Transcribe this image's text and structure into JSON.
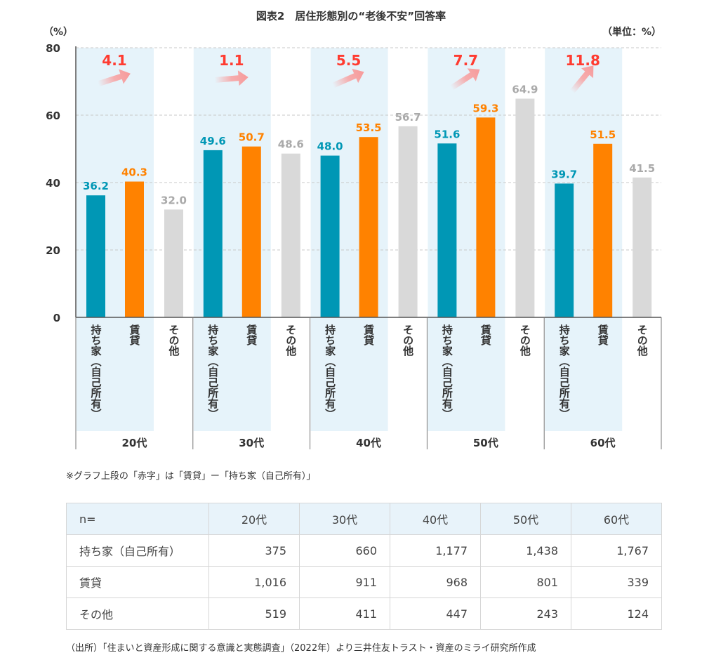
{
  "chart_data": {
    "type": "bar",
    "title": "図表2　居住形態別の“老後不安”回答率",
    "ylabel": "（%）",
    "unit_label": "（単位：%）",
    "ylim": [
      0,
      80
    ],
    "yticks": [
      0,
      20,
      40,
      60,
      80
    ],
    "grid": true,
    "categories": [
      "20代",
      "30代",
      "40代",
      "50代",
      "60代"
    ],
    "series": [
      {
        "name": "持ち家（自己所有）",
        "color": "#0097b5",
        "values": [
          36.2,
          49.6,
          48.0,
          51.6,
          39.7
        ]
      },
      {
        "name": "賃貸",
        "color": "#ff8200",
        "values": [
          40.3,
          50.7,
          53.5,
          59.3,
          51.5
        ]
      },
      {
        "name": "その他",
        "color": "#d9d9d9",
        "label_color": "#aaaaaa",
        "values": [
          32.0,
          48.6,
          56.7,
          64.9,
          41.5
        ]
      }
    ],
    "differences": [
      "4.1",
      "1.1",
      "5.5",
      "7.7",
      "11.8"
    ],
    "difference_color": "#ff3b30",
    "highlight_color": "#e6f3fa"
  },
  "note": "※グラフ上段の「赤字」は「賃貸」ー「持ち家（自己所有）」",
  "table": {
    "header": [
      "n=",
      "20代",
      "30代",
      "40代",
      "50代",
      "60代"
    ],
    "rows": [
      {
        "label": "持ち家（自己所有）",
        "values": [
          "375",
          "660",
          "1,177",
          "1,438",
          "1,767"
        ]
      },
      {
        "label": "賃貸",
        "values": [
          "1,016",
          "911",
          "968",
          "801",
          "339"
        ]
      },
      {
        "label": "その他",
        "values": [
          "519",
          "411",
          "447",
          "243",
          "124"
        ]
      }
    ]
  },
  "source": "（出所）「住まいと資産形成に関する意識と実態調査」（2022年）より三井住友トラスト・資産のミライ研究所作成"
}
